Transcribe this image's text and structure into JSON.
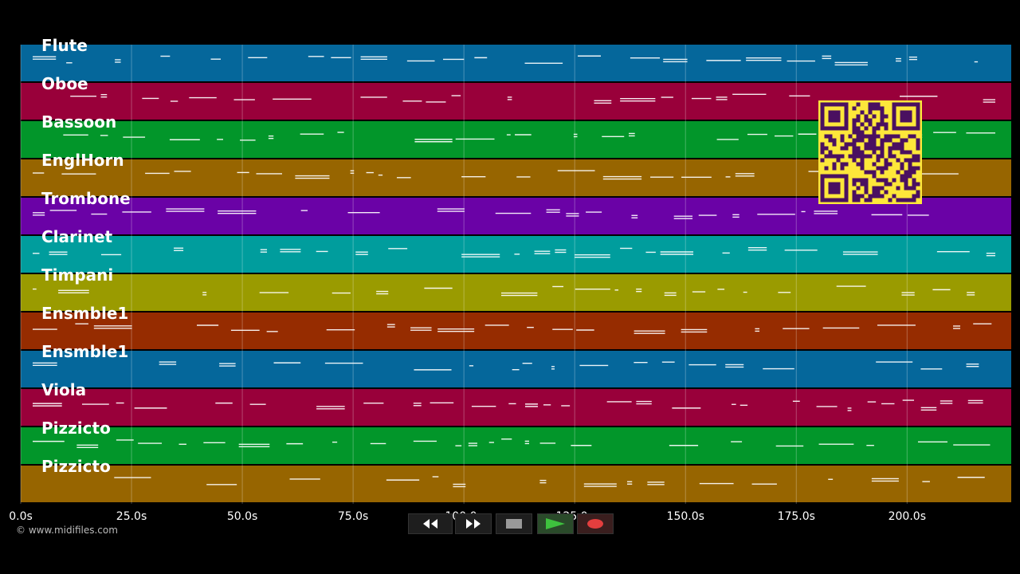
{
  "tracks": [
    {
      "name": "Flute",
      "color": "#05679b"
    },
    {
      "name": "Oboe",
      "color": "#99003a"
    },
    {
      "name": "Bassoon",
      "color": "#02962a"
    },
    {
      "name": "EnglHorn",
      "color": "#976500"
    },
    {
      "name": "Trombone",
      "color": "#6a02a6"
    },
    {
      "name": "Clarinet",
      "color": "#009d9d"
    },
    {
      "name": "Timpani",
      "color": "#9a9b00"
    },
    {
      "name": "Ensmble1",
      "color": "#962c00"
    },
    {
      "name": "Ensmble1",
      "color": "#05679b"
    },
    {
      "name": "Viola",
      "color": "#99003a"
    },
    {
      "name": "Pizzicto",
      "color": "#02962a"
    },
    {
      "name": "Pizzicto",
      "color": "#976500"
    }
  ],
  "timeline": {
    "ticks": [
      "0.0s",
      "25.0s",
      "50.0s",
      "75.0s",
      "100.0s",
      "125.0s",
      "150.0s",
      "175.0s",
      "200.0s"
    ],
    "tick_values": [
      0,
      25,
      50,
      75,
      100,
      125,
      150,
      175,
      200
    ],
    "max_seconds": 223.5
  },
  "footer": "© www.midifiles.com",
  "controls": [
    {
      "name": "rewind-button",
      "icon": "rewind-icon"
    },
    {
      "name": "fast-forward-button",
      "icon": "fast-forward-icon"
    },
    {
      "name": "stop-button",
      "icon": "stop-icon"
    },
    {
      "name": "play-button",
      "icon": "play-icon"
    },
    {
      "name": "record-button",
      "icon": "record-icon"
    }
  ],
  "colors": {
    "background": "#000000",
    "note": "#ffffff",
    "qr_bg": "#fde73a",
    "qr_fg": "#4a1060",
    "play": "#3ec13e",
    "record": "#e33e3e"
  }
}
